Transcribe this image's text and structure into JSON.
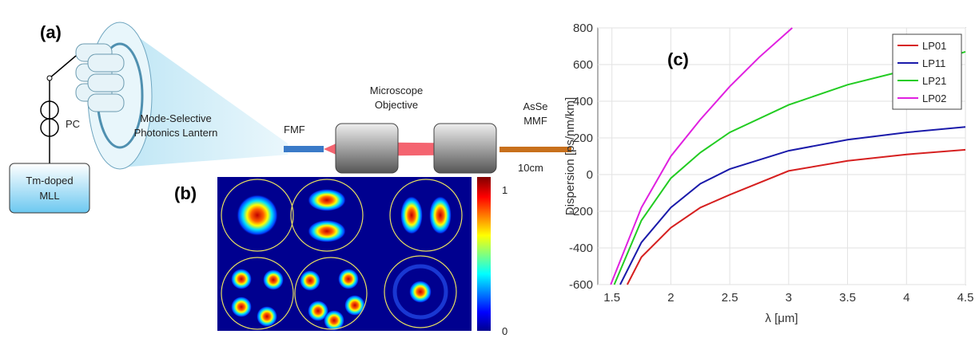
{
  "panel_a": {
    "label": "(a)",
    "fmf": "FMF",
    "objective": [
      "Microscope",
      "Objective"
    ],
    "mmf": [
      "AsSe",
      "MMF"
    ],
    "length": "10cm",
    "pc": "PC",
    "lantern": [
      "Mode-Selective",
      "Photonics Lantern"
    ],
    "laser": [
      "Tm-doped",
      "MLL"
    ]
  },
  "panel_b": {
    "label": "(b)",
    "colorbar_max": "1",
    "colorbar_min": "0"
  },
  "chart_data": {
    "type": "line",
    "label": "(c)",
    "x_label": "λ [μm]",
    "y_label": "Dispersion [ps/nm/km]",
    "xlim": [
      1.38,
      4.5
    ],
    "xticks": [
      1.5,
      2,
      2.5,
      3,
      3.5,
      4,
      4.5
    ],
    "ylim": [
      -600,
      800
    ],
    "yticks": [
      -600,
      -400,
      -200,
      0,
      200,
      400,
      600,
      800
    ],
    "grid": true,
    "legend": "upper right",
    "series": [
      {
        "name": "LP01",
        "color": "#d62020",
        "x": [
          1.63,
          1.75,
          2.0,
          2.25,
          2.5,
          3.0,
          3.5,
          4.0,
          4.5
        ],
        "values": [
          -600,
          -450,
          -290,
          -180,
          -110,
          20,
          75,
          110,
          135
        ]
      },
      {
        "name": "LP11",
        "color": "#1a1aaa",
        "x": [
          1.57,
          1.75,
          2.0,
          2.25,
          2.5,
          3.0,
          3.5,
          4.0,
          4.5
        ],
        "values": [
          -600,
          -370,
          -180,
          -50,
          30,
          130,
          190,
          230,
          260
        ]
      },
      {
        "name": "LP21",
        "color": "#22cc22",
        "x": [
          1.52,
          1.75,
          2.0,
          2.25,
          2.5,
          3.0,
          3.5,
          4.0,
          4.5
        ],
        "values": [
          -600,
          -250,
          -20,
          120,
          230,
          380,
          490,
          570,
          670
        ]
      },
      {
        "name": "LP02",
        "color": "#e020e0",
        "x": [
          1.49,
          1.75,
          2.0,
          2.25,
          2.5,
          2.75,
          3.03
        ],
        "values": [
          -600,
          -180,
          100,
          300,
          480,
          640,
          800
        ]
      }
    ]
  }
}
